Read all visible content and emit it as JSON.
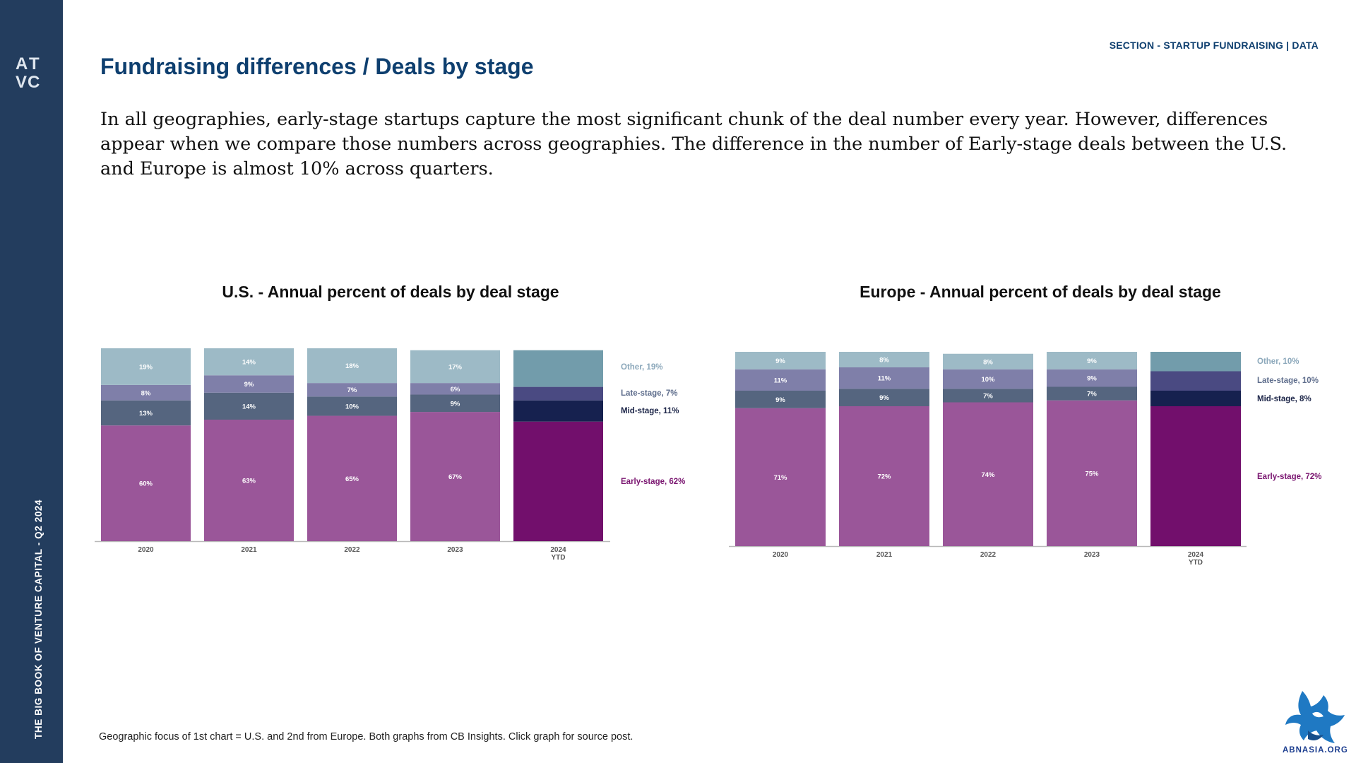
{
  "sidebar": {
    "logo_text": "ATVC",
    "vertical_label": "THE BIG BOOK OF VENTURE CAPITAL - Q2 2024"
  },
  "header": {
    "section_tag": "SECTION - STARTUP FUNDRAISING | DATA",
    "title": "Fundraising differences / Deals by stage",
    "intro": "In all geographies, early-stage startups capture the most significant chunk of the deal number every year. However, differences appear when we compare those numbers across geographies. The difference in the number of Early-stage deals between the U.S. and Europe is almost 10% across quarters."
  },
  "colors": {
    "sidebar": "#233d5e",
    "title": "#0e3f6f",
    "early": "#9a5699",
    "mid": "#55657f",
    "late": "#7f7fa9",
    "other": "#9dbac6",
    "early_current": "#720f6c",
    "mid_current": "#16214f",
    "late_current": "#4a4a82",
    "other_current": "#729cab",
    "legend_other": "#8ca8bb",
    "legend_late": "#5e6d8c",
    "legend_mid": "#1c2548",
    "legend_early": "#7a1570"
  },
  "chart_data": [
    {
      "type": "bar",
      "stacked": true,
      "title": "U.S. - Annual percent of deals by deal stage",
      "categories": [
        "2020",
        "2021",
        "2022",
        "2023",
        "2024 YTD"
      ],
      "series": [
        {
          "name": "Early-stage",
          "values": [
            60,
            63,
            65,
            67,
            62
          ],
          "labels": [
            "60%",
            "63%",
            "65%",
            "67%",
            ""
          ]
        },
        {
          "name": "Mid-stage",
          "values": [
            13,
            14,
            10,
            9,
            11
          ],
          "labels": [
            "13%",
            "14%",
            "10%",
            "9%",
            ""
          ]
        },
        {
          "name": "Late-stage",
          "values": [
            8,
            9,
            7,
            6,
            7
          ],
          "labels": [
            "8%",
            "9%",
            "7%",
            "6%",
            ""
          ]
        },
        {
          "name": "Other",
          "values": [
            19,
            14,
            18,
            17,
            19
          ],
          "labels": [
            "19%",
            "14%",
            "18%",
            "17%",
            ""
          ]
        }
      ],
      "legend": [
        "Other, 19%",
        "Late-stage, 7%",
        "Mid-stage, 11%",
        "Early-stage, 62%"
      ],
      "legend_position": "right",
      "ylim": [
        0,
        100
      ]
    },
    {
      "type": "bar",
      "stacked": true,
      "title": "Europe - Annual percent of deals by deal stage",
      "categories": [
        "2020",
        "2021",
        "2022",
        "2023",
        "2024 YTD"
      ],
      "series": [
        {
          "name": "Early-stage",
          "values": [
            71,
            72,
            74,
            75,
            72
          ],
          "labels": [
            "71%",
            "72%",
            "74%",
            "75%",
            ""
          ]
        },
        {
          "name": "Mid-stage",
          "values": [
            9,
            9,
            7,
            7,
            8
          ],
          "labels": [
            "9%",
            "9%",
            "7%",
            "7%",
            ""
          ]
        },
        {
          "name": "Late-stage",
          "values": [
            11,
            11,
            10,
            9,
            10
          ],
          "labels": [
            "11%",
            "11%",
            "10%",
            "9%",
            ""
          ]
        },
        {
          "name": "Other",
          "values": [
            9,
            8,
            8,
            9,
            10
          ],
          "labels": [
            "9%",
            "8%",
            "8%",
            "9%",
            ""
          ]
        }
      ],
      "legend": [
        "Other, 10%",
        "Late-stage, 10%",
        "Mid-stage, 8%",
        "Early-stage, 72%"
      ],
      "legend_position": "right",
      "ylim": [
        0,
        100
      ]
    }
  ],
  "footnote": "Geographic focus of 1st chart = U.S. and 2nd from Europe. Both graphs from CB Insights. Click graph for source post.",
  "watermark": {
    "text": "ABNASIA.ORG",
    "icon": "eagle-icon"
  }
}
